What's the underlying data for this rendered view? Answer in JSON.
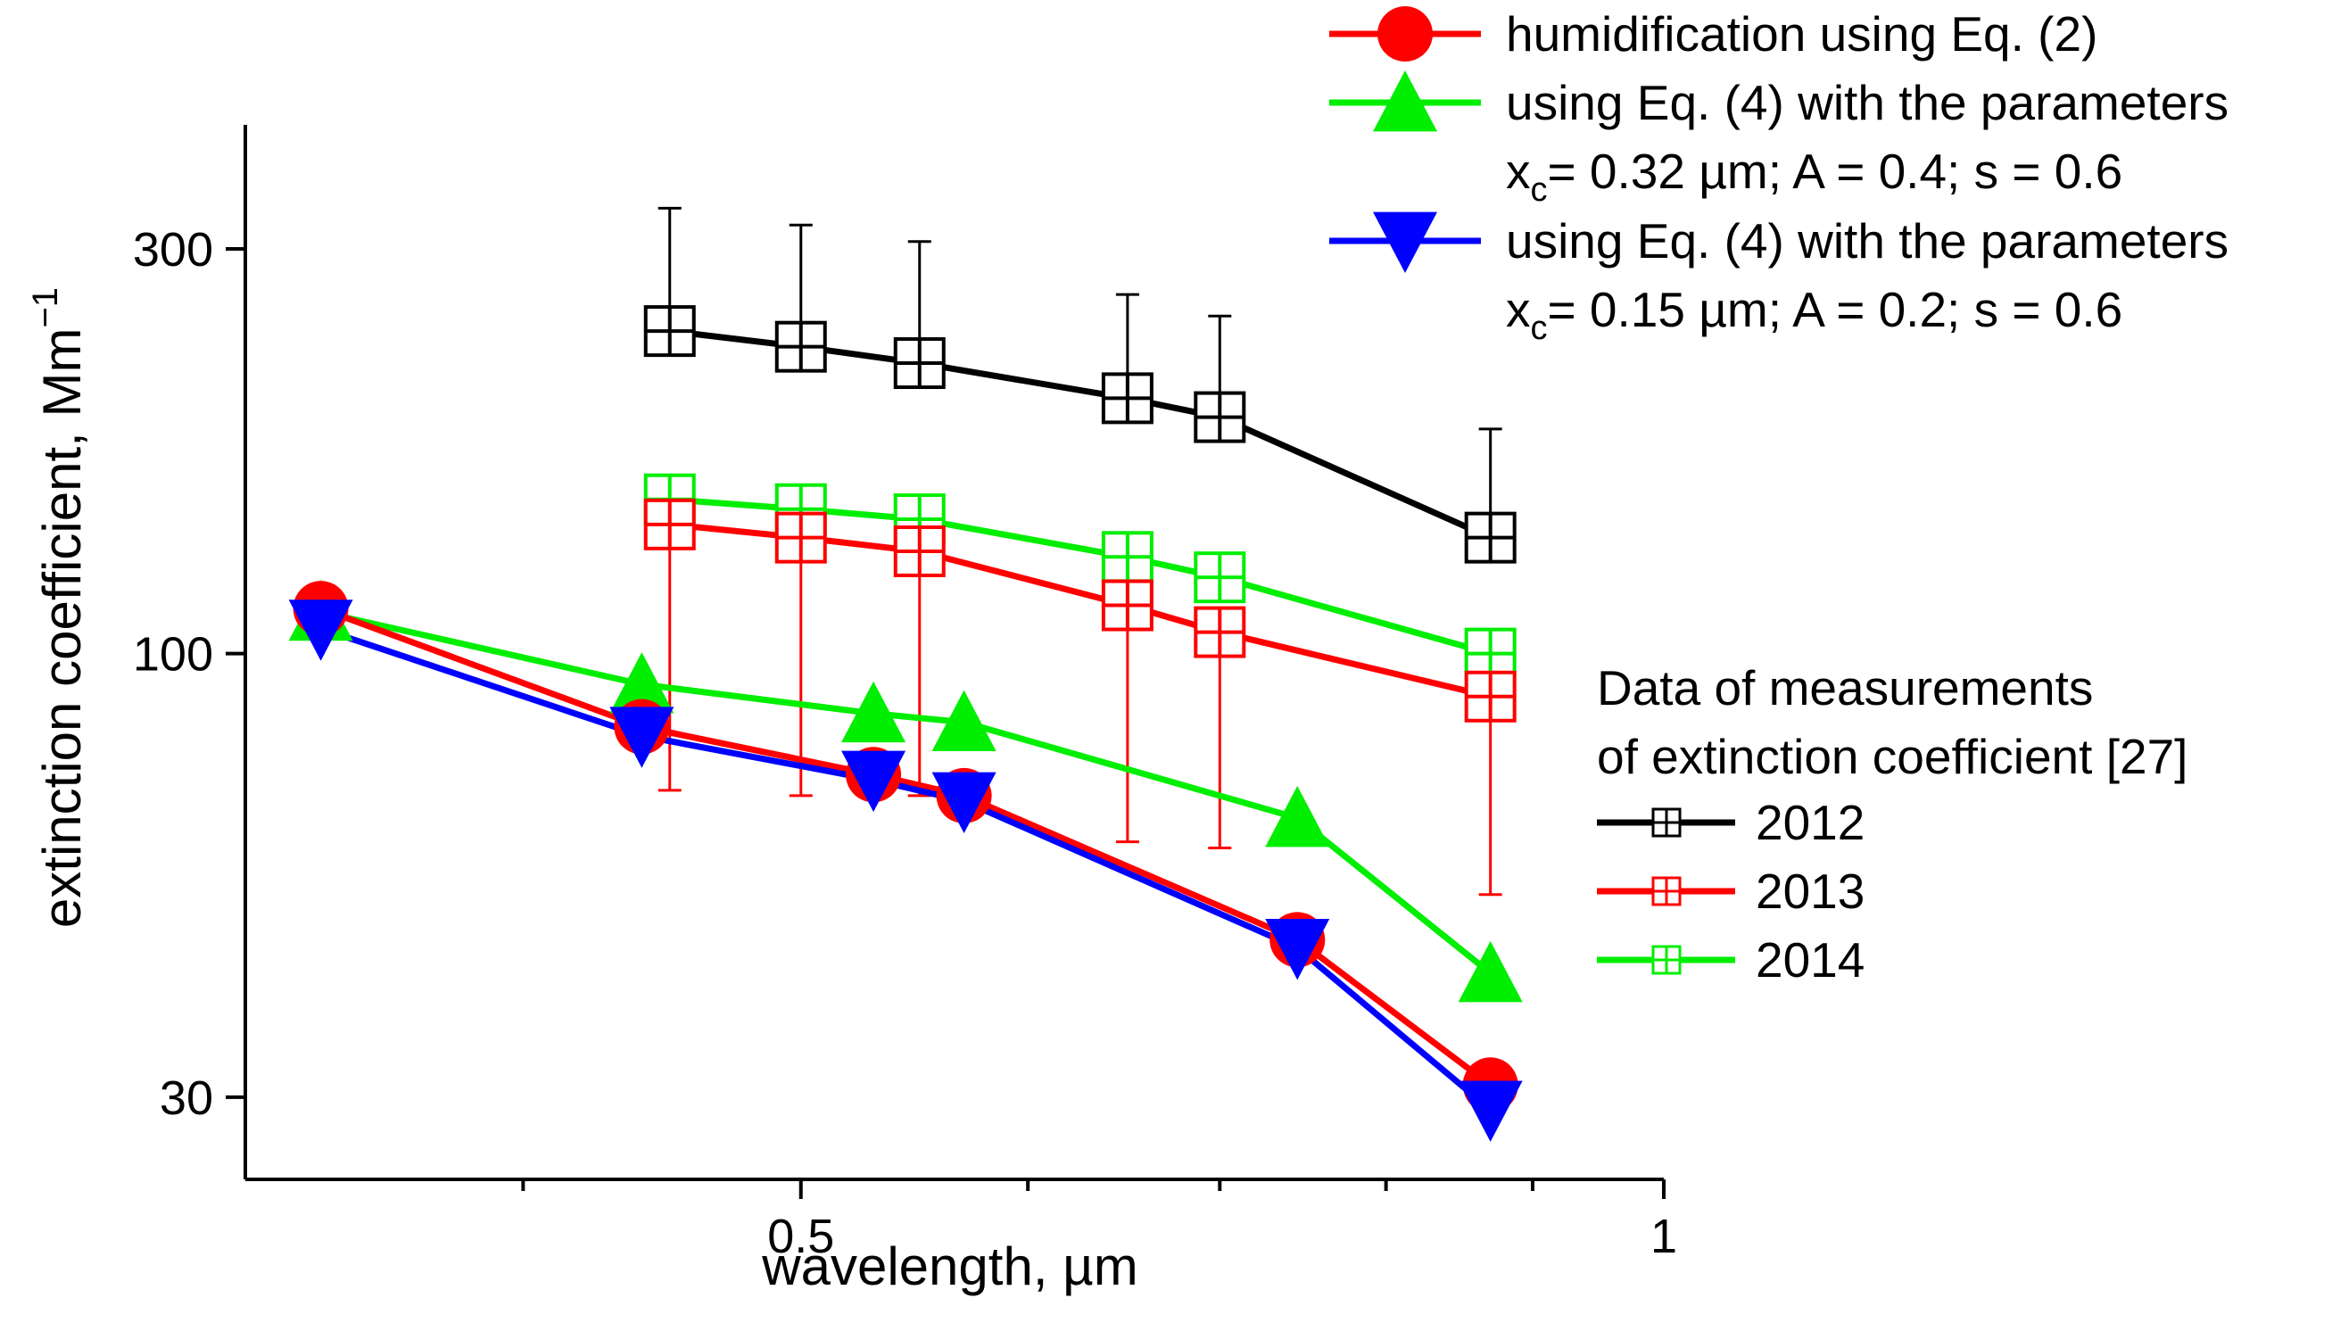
{
  "chart_data": {
    "type": "line",
    "title": "",
    "xlabel": "wavelength, µm",
    "ylabel": "extinction coefficient, Mm",
    "ylabel_sup": "−1",
    "xscale": "log",
    "yscale": "log",
    "xlim": [
      0.32,
      1.0
    ],
    "ylim": [
      24,
      420
    ],
    "x_ticks": [
      {
        "value": 0.5,
        "label": "0.5"
      },
      {
        "value": 1.0,
        "label": "1"
      }
    ],
    "x_minor_ticks": [
      0.4,
      0.6,
      0.7,
      0.8,
      0.9
    ],
    "y_ticks": [
      {
        "value": 30,
        "label": "30"
      },
      {
        "value": 100,
        "label": "100"
      },
      {
        "value": 300,
        "label": "300"
      }
    ],
    "series": [
      {
        "name": "humidification using Eq. (2)",
        "color": "#ff0000",
        "marker": "circle",
        "x": [
          0.34,
          0.44,
          0.53,
          0.57,
          0.745,
          0.87
        ],
        "y": [
          113,
          82,
          72,
          68,
          46,
          31
        ]
      },
      {
        "name": "using Eq. (4) with the parameters",
        "color": "#00ee00",
        "marker": "triangle-up",
        "x": [
          0.34,
          0.44,
          0.53,
          0.57,
          0.745,
          0.87
        ],
        "y": [
          112,
          92,
          85,
          83,
          64,
          42
        ]
      },
      {
        "name": "using Eq. (4) with the parameters",
        "color": "#0000ff",
        "marker": "triangle-down",
        "x": [
          0.34,
          0.44,
          0.53,
          0.57,
          0.745,
          0.87
        ],
        "y": [
          107,
          80,
          71,
          67,
          45,
          29
        ]
      },
      {
        "name": "2012",
        "color": "#000000",
        "marker": "square-cross",
        "x": [
          0.45,
          0.5,
          0.55,
          0.65,
          0.7,
          0.87
        ],
        "y": [
          240,
          230,
          220,
          200,
          190,
          137
        ],
        "err_up": [
          335,
          320,
          306,
          265,
          250,
          184
        ]
      },
      {
        "name": "2013",
        "color": "#ff0000",
        "marker": "square-cross",
        "x": [
          0.45,
          0.5,
          0.55,
          0.65,
          0.7,
          0.87
        ],
        "y": [
          142,
          137,
          132,
          114,
          106,
          89
        ],
        "err_down": [
          69,
          68,
          68,
          60,
          59,
          52
        ]
      },
      {
        "name": "2014",
        "color": "#00ee00",
        "marker": "square-cross",
        "x": [
          0.45,
          0.5,
          0.55,
          0.65,
          0.7,
          0.87
        ],
        "y": [
          152,
          148,
          144,
          130,
          123,
          100
        ]
      }
    ],
    "legend_top": [
      {
        "series": 0,
        "lines": [
          {
            "text": "humidification using Eq. (2)"
          }
        ]
      },
      {
        "series": 1,
        "lines": [
          {
            "text": "using Eq. (4) with the parameters"
          },
          {
            "text": "x",
            "sub": "c",
            "rest": "= 0.32 µm; A = 0.4; s = 0.6"
          }
        ]
      },
      {
        "series": 2,
        "lines": [
          {
            "text": "using Eq. (4) with the parameters"
          },
          {
            "text": "x",
            "sub": "c",
            "rest": "= 0.15 µm; A = 0.2; s = 0.6"
          }
        ]
      }
    ],
    "legend_bottom": {
      "title_lines": [
        "Data of measurements",
        "of extinction coefficient [27]"
      ],
      "entries": [
        {
          "series": 3,
          "label": "2012"
        },
        {
          "series": 4,
          "label": "2013"
        },
        {
          "series": 5,
          "label": "2014"
        }
      ]
    }
  }
}
